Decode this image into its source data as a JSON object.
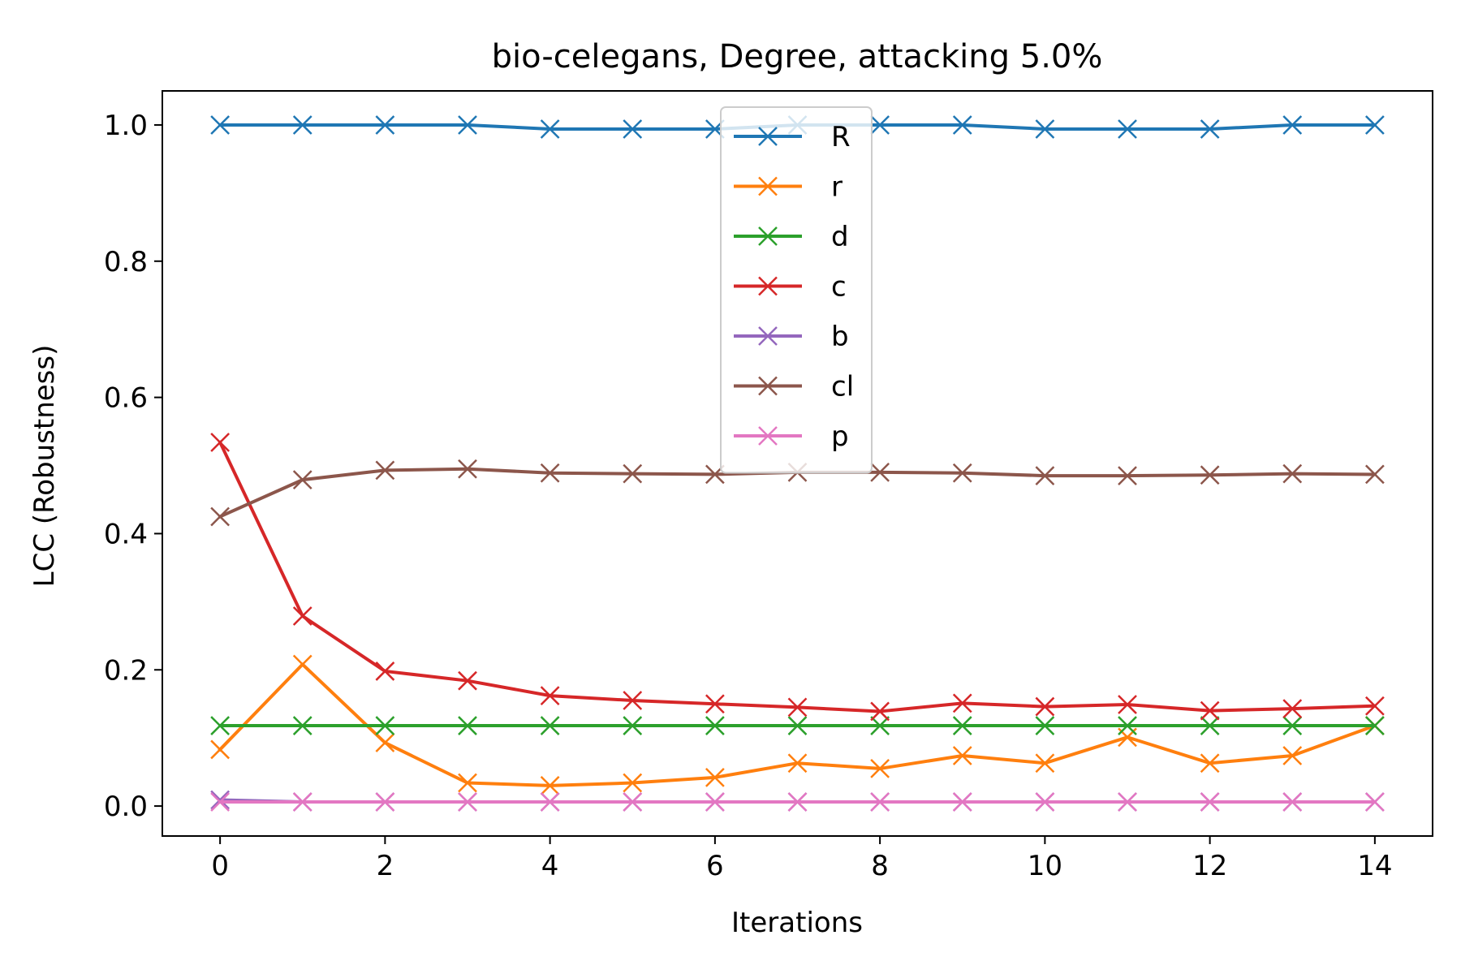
{
  "chart_data": {
    "type": "line",
    "title": "bio-celegans, Degree, attacking 5.0%",
    "xlabel": "Iterations",
    "ylabel": "LCC (Robustness)",
    "xlim": [
      -0.7,
      14.7
    ],
    "ylim": [
      -0.044,
      1.05
    ],
    "xticks": [
      0,
      2,
      4,
      6,
      8,
      10,
      12,
      14
    ],
    "xtick_labels": [
      "0",
      "2",
      "4",
      "6",
      "8",
      "10",
      "12",
      "14"
    ],
    "yticks": [
      0.0,
      0.2,
      0.4,
      0.6,
      0.8,
      1.0
    ],
    "ytick_labels": [
      "0.0",
      "0.2",
      "0.4",
      "0.6",
      "0.8",
      "1.0"
    ],
    "grid": false,
    "legend_position": "upper center",
    "marker": "x",
    "x": [
      0,
      1,
      2,
      3,
      4,
      5,
      6,
      7,
      8,
      9,
      10,
      11,
      12,
      13,
      14
    ],
    "series": [
      {
        "name": "R",
        "color": "#1f77b4",
        "values": [
          1.0,
          1.0,
          1.0,
          1.0,
          0.994,
          0.994,
          0.994,
          1.0,
          1.0,
          1.0,
          0.994,
          0.994,
          0.994,
          1.0,
          1.0
        ]
      },
      {
        "name": "r",
        "color": "#ff7f0e",
        "values": [
          0.083,
          0.208,
          0.093,
          0.034,
          0.03,
          0.034,
          0.042,
          0.063,
          0.055,
          0.074,
          0.063,
          0.101,
          0.063,
          0.074,
          0.118
        ]
      },
      {
        "name": "d",
        "color": "#2ca02c",
        "values": [
          0.118,
          0.118,
          0.118,
          0.118,
          0.118,
          0.118,
          0.118,
          0.118,
          0.118,
          0.118,
          0.118,
          0.118,
          0.118,
          0.118,
          0.118
        ]
      },
      {
        "name": "c",
        "color": "#d62728",
        "values": [
          0.534,
          0.279,
          0.198,
          0.184,
          0.162,
          0.155,
          0.15,
          0.145,
          0.139,
          0.151,
          0.146,
          0.149,
          0.14,
          0.143,
          0.147
        ]
      },
      {
        "name": "b",
        "color": "#9467bd",
        "values": [
          0.009,
          0.006,
          0.006,
          0.006,
          0.006,
          0.006,
          0.006,
          0.006,
          0.006,
          0.006,
          0.006,
          0.006,
          0.006,
          0.006,
          0.006
        ]
      },
      {
        "name": "cl",
        "color": "#8c564b",
        "values": [
          0.425,
          0.479,
          0.493,
          0.495,
          0.489,
          0.488,
          0.487,
          0.49,
          0.49,
          0.489,
          0.485,
          0.485,
          0.486,
          0.488,
          0.487
        ]
      },
      {
        "name": "p",
        "color": "#e377c2",
        "values": [
          0.006,
          0.006,
          0.006,
          0.006,
          0.006,
          0.006,
          0.006,
          0.006,
          0.006,
          0.006,
          0.006,
          0.006,
          0.006,
          0.006,
          0.006
        ]
      }
    ]
  }
}
